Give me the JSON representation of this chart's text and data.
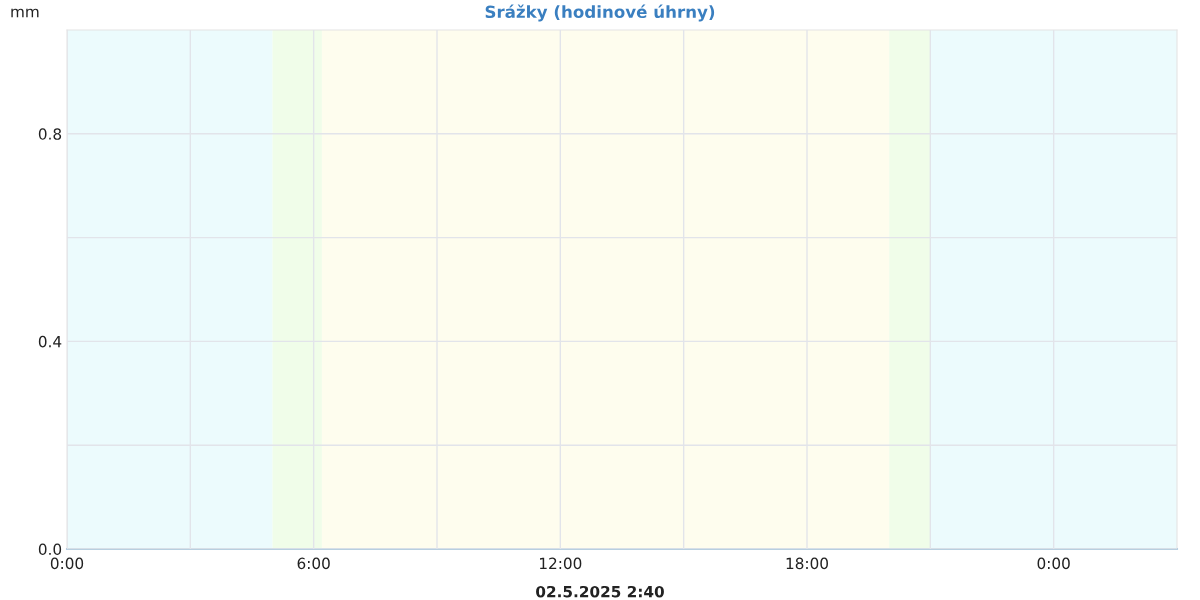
{
  "chart_data": {
    "type": "bar",
    "title": "Srážky (hodinové úhrny)",
    "ylabel": "mm",
    "xlabel": "02.5.2025 2:40",
    "xlim": [
      0,
      27
    ],
    "xticks": [
      {
        "value": 0,
        "label": "0:00"
      },
      {
        "value": 3,
        "label": null
      },
      {
        "value": 6,
        "label": "6:00"
      },
      {
        "value": 9,
        "label": null
      },
      {
        "value": 12,
        "label": "12:00"
      },
      {
        "value": 15,
        "label": null
      },
      {
        "value": 18,
        "label": "18:00"
      },
      {
        "value": 21,
        "label": null
      },
      {
        "value": 24,
        "label": "0:00"
      }
    ],
    "ylim": [
      0,
      1
    ],
    "yticks": [
      {
        "value": 0,
        "label": "0.0"
      },
      {
        "value": 0.2,
        "label": null
      },
      {
        "value": 0.4,
        "label": "0.4"
      },
      {
        "value": 0.6,
        "label": null
      },
      {
        "value": 0.8,
        "label": "0.8"
      }
    ],
    "grid": true,
    "bands": [
      {
        "axis": "x",
        "from": 0,
        "to": 5,
        "color": "#ecfbfd"
      },
      {
        "axis": "x",
        "from": 5,
        "to": 6.2,
        "color": "#f0fde9"
      },
      {
        "axis": "x",
        "from": 6.2,
        "to": 20,
        "color": "#fefdee"
      },
      {
        "axis": "x",
        "from": 20,
        "to": 21,
        "color": "#f0fde9"
      },
      {
        "axis": "x",
        "from": 21,
        "to": 27,
        "color": "#ecfbfd"
      }
    ]
  }
}
